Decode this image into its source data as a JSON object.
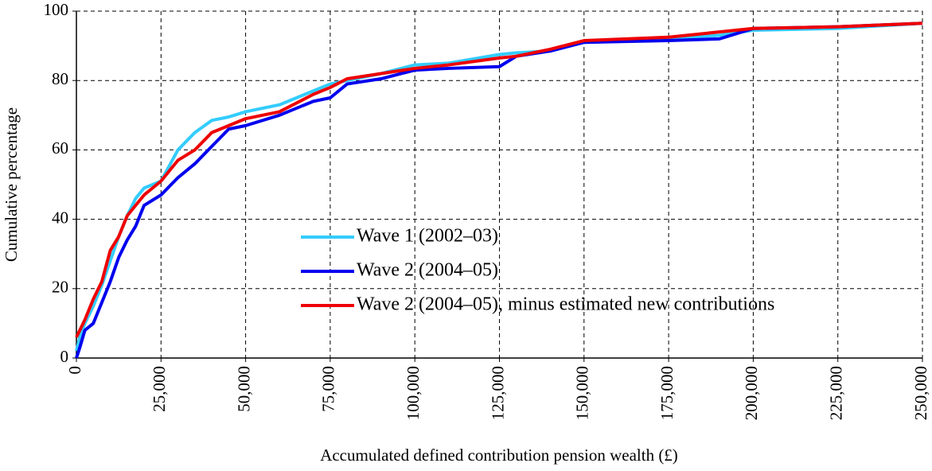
{
  "chart_data": {
    "type": "line",
    "x_label": "Accumulated defined contribution pension wealth (£)",
    "y_label": "Cumulative percentage",
    "x": [
      0,
      1000,
      2500,
      5000,
      7500,
      10000,
      12500,
      15000,
      17500,
      20000,
      25000,
      30000,
      35000,
      40000,
      45000,
      50000,
      60000,
      70000,
      75000,
      80000,
      90000,
      100000,
      110000,
      125000,
      130000,
      140000,
      150000,
      175000,
      190000,
      200000,
      225000,
      250000
    ],
    "series": [
      {
        "name": "Wave 1 (2002–03)",
        "color": "#33ccff",
        "values": [
          2,
          6,
          10,
          15,
          21,
          28,
          35,
          41,
          46,
          49,
          51,
          60,
          65,
          68.5,
          69.5,
          71,
          73,
          77,
          79,
          80,
          82,
          84.5,
          85,
          87.5,
          88,
          88.5,
          91,
          92,
          93,
          94.5,
          95,
          96.5
        ]
      },
      {
        "name": "Wave 2 (2004–05)",
        "color": "#0000ee",
        "values": [
          0,
          3,
          8,
          10,
          16,
          22,
          29,
          34,
          38,
          44,
          47,
          52,
          56,
          61,
          66,
          67,
          70,
          74,
          75,
          79,
          80.5,
          83,
          83.5,
          84,
          87,
          88.5,
          91,
          91.5,
          92,
          95,
          95.5,
          96.5
        ]
      },
      {
        "name": "Wave 2 (2004–05), minus estimated new contributions",
        "color": "#ee0000",
        "values": [
          6,
          8,
          11,
          17,
          22,
          31,
          35,
          41,
          44,
          47,
          51,
          57,
          60,
          65,
          67,
          69,
          71,
          76,
          78,
          80.5,
          82,
          83.5,
          84.5,
          86.5,
          87,
          89,
          91.5,
          92.5,
          94,
          95,
          95.5,
          96.5
        ]
      }
    ],
    "xlim": [
      0,
      250000
    ],
    "xticks": [
      0,
      {
        "value": 25000,
        "label": "25,000"
      },
      {
        "value": 50000,
        "label": "50,000"
      },
      {
        "value": 75000,
        "label": "75,000"
      },
      {
        "value": 100000,
        "label": "100,000"
      },
      {
        "value": 125000,
        "label": "125,000"
      },
      {
        "value": 150000,
        "label": "150,000"
      },
      {
        "value": 175000,
        "label": "175,000"
      },
      {
        "value": 200000,
        "label": "200,000"
      },
      {
        "value": 225000,
        "label": "225,000"
      },
      {
        "value": 250000,
        "label": "250,000"
      }
    ],
    "ylim": [
      0,
      100
    ],
    "yticks": [
      0,
      20,
      40,
      60,
      80,
      100
    ],
    "grid": true,
    "legend": "lower right"
  }
}
